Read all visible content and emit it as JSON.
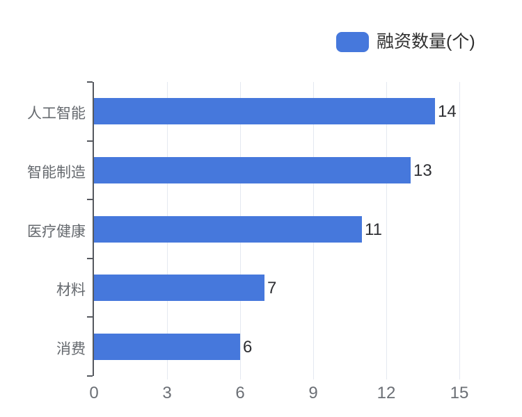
{
  "chart_data": {
    "type": "bar",
    "orientation": "horizontal",
    "title": "",
    "legend": [
      "融资数量(个)"
    ],
    "legend_position": "top-right",
    "series_name": "融资数量(个)",
    "categories": [
      "人工智能",
      "智能制造",
      "医疗健康",
      "材料",
      "消费"
    ],
    "values": [
      14,
      13,
      11,
      7,
      6
    ],
    "value_labels_shown": true,
    "xlabel": "",
    "ylabel": "",
    "xlim": [
      0,
      15
    ],
    "xticks": [
      0,
      3,
      6,
      9,
      12,
      15
    ],
    "grid": "vertical-only",
    "bar_color": "#4678dc",
    "grid_color": "#e4e8f0",
    "axis_color": "#55585e",
    "tick_label_color": "#6b6f75",
    "category_label_color": "#65696e",
    "value_label_color": "#2e2f33",
    "background_color": "#ffffff"
  }
}
